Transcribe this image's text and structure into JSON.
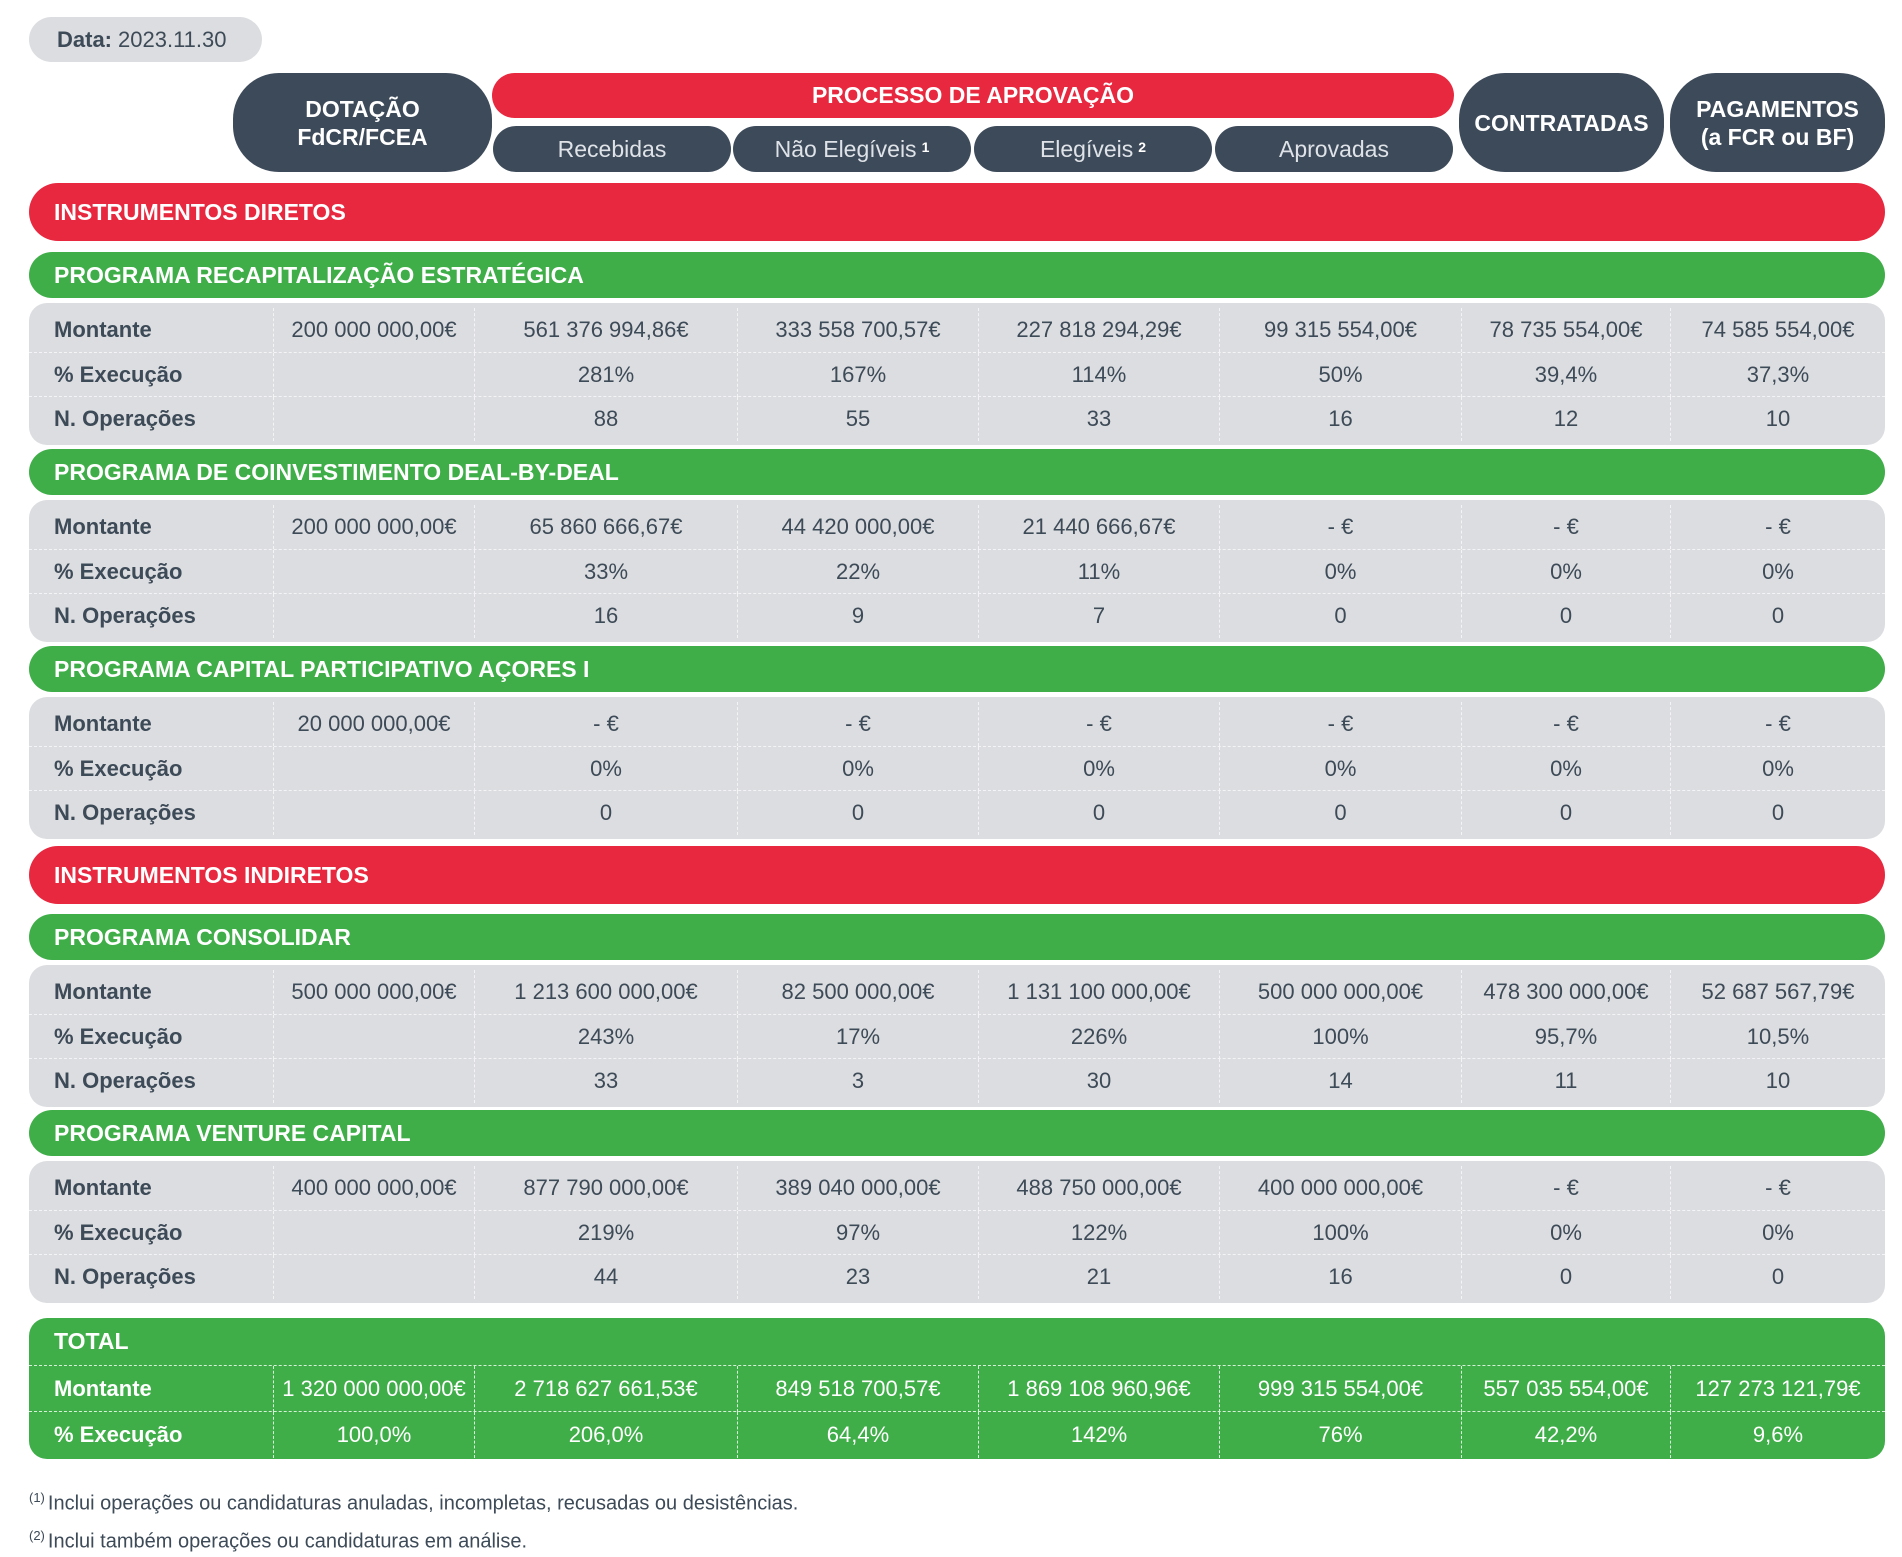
{
  "date": {
    "label": "Data:",
    "value": "2023.11.30"
  },
  "header": {
    "dotacao": "DOTAÇÃO\nFdCR/FCEA",
    "processo": "PROCESSO DE APROVAÇÃO",
    "recebidas": "Recebidas",
    "nao_elegiveis": "Não Elegíveis",
    "nao_elegiveis_note": "1",
    "elegiveis": "Elegíveis",
    "elegiveis_note": "2",
    "aprovadas": "Aprovadas",
    "contratadas": "CONTRATADAS",
    "pagamentos": "PAGAMENTOS\n(a FCR ou BF)"
  },
  "row_labels": {
    "montante": "Montante",
    "execucao": "% Execução",
    "operacoes": "N. Operações"
  },
  "sections": [
    {
      "title": "INSTRUMENTOS DIRETOS",
      "programs": [
        {
          "title": "PROGRAMA RECAPITALIZAÇÃO ESTRATÉGICA",
          "montante": [
            "200 000 000,00€",
            "561 376 994,86€",
            "333 558 700,57€",
            "227 818 294,29€",
            "99 315 554,00€",
            "78 735 554,00€",
            "74 585 554,00€"
          ],
          "execucao": [
            "",
            "281%",
            "167%",
            "114%",
            "50%",
            "39,4%",
            "37,3%"
          ],
          "operacoes": [
            "",
            "88",
            "55",
            "33",
            "16",
            "12",
            "10"
          ]
        },
        {
          "title": "PROGRAMA  DE COINVESTIMENTO DEAL-BY-DEAL",
          "montante": [
            "200 000 000,00€",
            "65 860 666,67€",
            "44 420 000,00€",
            "21 440 666,67€",
            "- €",
            "- €",
            "- €"
          ],
          "execucao": [
            "",
            "33%",
            "22%",
            "11%",
            "0%",
            "0%",
            "0%"
          ],
          "operacoes": [
            "",
            "16",
            "9",
            "7",
            "0",
            "0",
            "0"
          ]
        },
        {
          "title": "PROGRAMA CAPITAL PARTICIPATIVO AÇORES I",
          "montante": [
            "20 000 000,00€",
            "- €",
            "- €",
            "- €",
            "- €",
            "- €",
            "- €"
          ],
          "execucao": [
            "",
            "0%",
            "0%",
            "0%",
            "0%",
            "0%",
            "0%"
          ],
          "operacoes": [
            "",
            "0",
            "0",
            "0",
            "0",
            "0",
            "0"
          ]
        }
      ]
    },
    {
      "title": "INSTRUMENTOS INDIRETOS",
      "programs": [
        {
          "title": "PROGRAMA CONSOLIDAR",
          "montante": [
            "500 000 000,00€",
            "1 213 600 000,00€",
            "82 500 000,00€",
            "1 131 100 000,00€",
            "500 000 000,00€",
            "478 300 000,00€",
            "52 687 567,79€"
          ],
          "execucao": [
            "",
            "243%",
            "17%",
            "226%",
            "100%",
            "95,7%",
            "10,5%"
          ],
          "operacoes": [
            "",
            "33",
            "3",
            "30",
            "14",
            "11",
            "10"
          ]
        },
        {
          "title": "PROGRAMA VENTURE CAPITAL",
          "montante": [
            "400 000 000,00€",
            "877 790 000,00€",
            "389 040 000,00€",
            "488 750 000,00€",
            "400 000 000,00€",
            "- €",
            "- €"
          ],
          "execucao": [
            "",
            "219%",
            "97%",
            "122%",
            "100%",
            "0%",
            "0%"
          ],
          "operacoes": [
            "",
            "44",
            "23",
            "21",
            "16",
            "0",
            "0"
          ]
        }
      ]
    }
  ],
  "total": {
    "title": "TOTAL",
    "montante": [
      "1 320 000 000,00€",
      "2 718 627 661,53€",
      "849 518 700,57€",
      "1 869 108 960,96€",
      "999 315 554,00€",
      "557 035 554,00€",
      "127 273 121,79€"
    ],
    "execucao": [
      "100,0%",
      "206,0%",
      "64,4%",
      "142%",
      "76%",
      "42,2%",
      "9,6%"
    ]
  },
  "footnotes": [
    {
      "mark": "(1)",
      "text": "Inclui operações ou candidaturas anuladas, incompletas, recusadas ou desistências."
    },
    {
      "mark": "(2)",
      "text": "Inclui também operações ou candidaturas em análise."
    }
  ],
  "colors": {
    "red": "#e8283f",
    "green": "#3fae49",
    "dark": "#3d4a5a",
    "grey": "#dcdde0"
  }
}
